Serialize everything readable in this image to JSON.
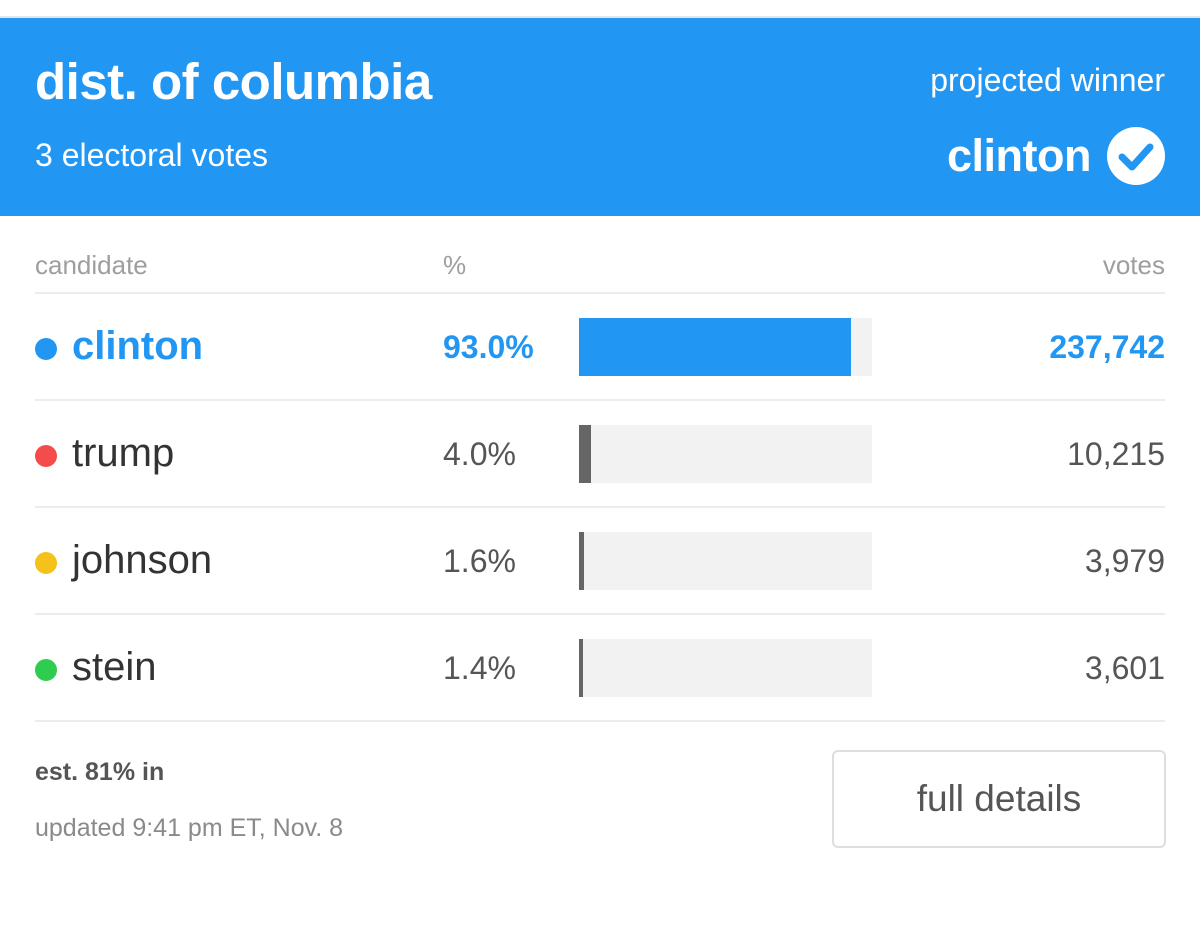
{
  "header": {
    "state": "dist. of columbia",
    "electoral_votes": "3 electoral votes",
    "projected_label": "projected winner",
    "winner": "clinton",
    "winner_icon": "check-circle-icon",
    "background": "#2196f3"
  },
  "table": {
    "headers": {
      "candidate": "candidate",
      "percent": "%",
      "votes": "votes"
    },
    "rows": [
      {
        "name": "clinton",
        "percent": "93.0%",
        "share": 93.0,
        "votes": "237,742",
        "dot_color": "#2196f3",
        "bar_color": "#2196f3",
        "winner": true
      },
      {
        "name": "trump",
        "percent": "4.0%",
        "share": 4.0,
        "votes": "10,215",
        "dot_color": "#f44b4b",
        "bar_color": "#666666",
        "winner": false
      },
      {
        "name": "johnson",
        "percent": "1.6%",
        "share": 1.6,
        "votes": "3,979",
        "dot_color": "#f5c21b",
        "bar_color": "#666666",
        "winner": false
      },
      {
        "name": "stein",
        "percent": "1.4%",
        "share": 1.4,
        "votes": "3,601",
        "dot_color": "#2ecc4f",
        "bar_color": "#666666",
        "winner": false
      }
    ]
  },
  "footer": {
    "reporting": "est. 81% in",
    "updated": "updated 9:41 pm ET, Nov. 8",
    "details_button": "full details"
  }
}
